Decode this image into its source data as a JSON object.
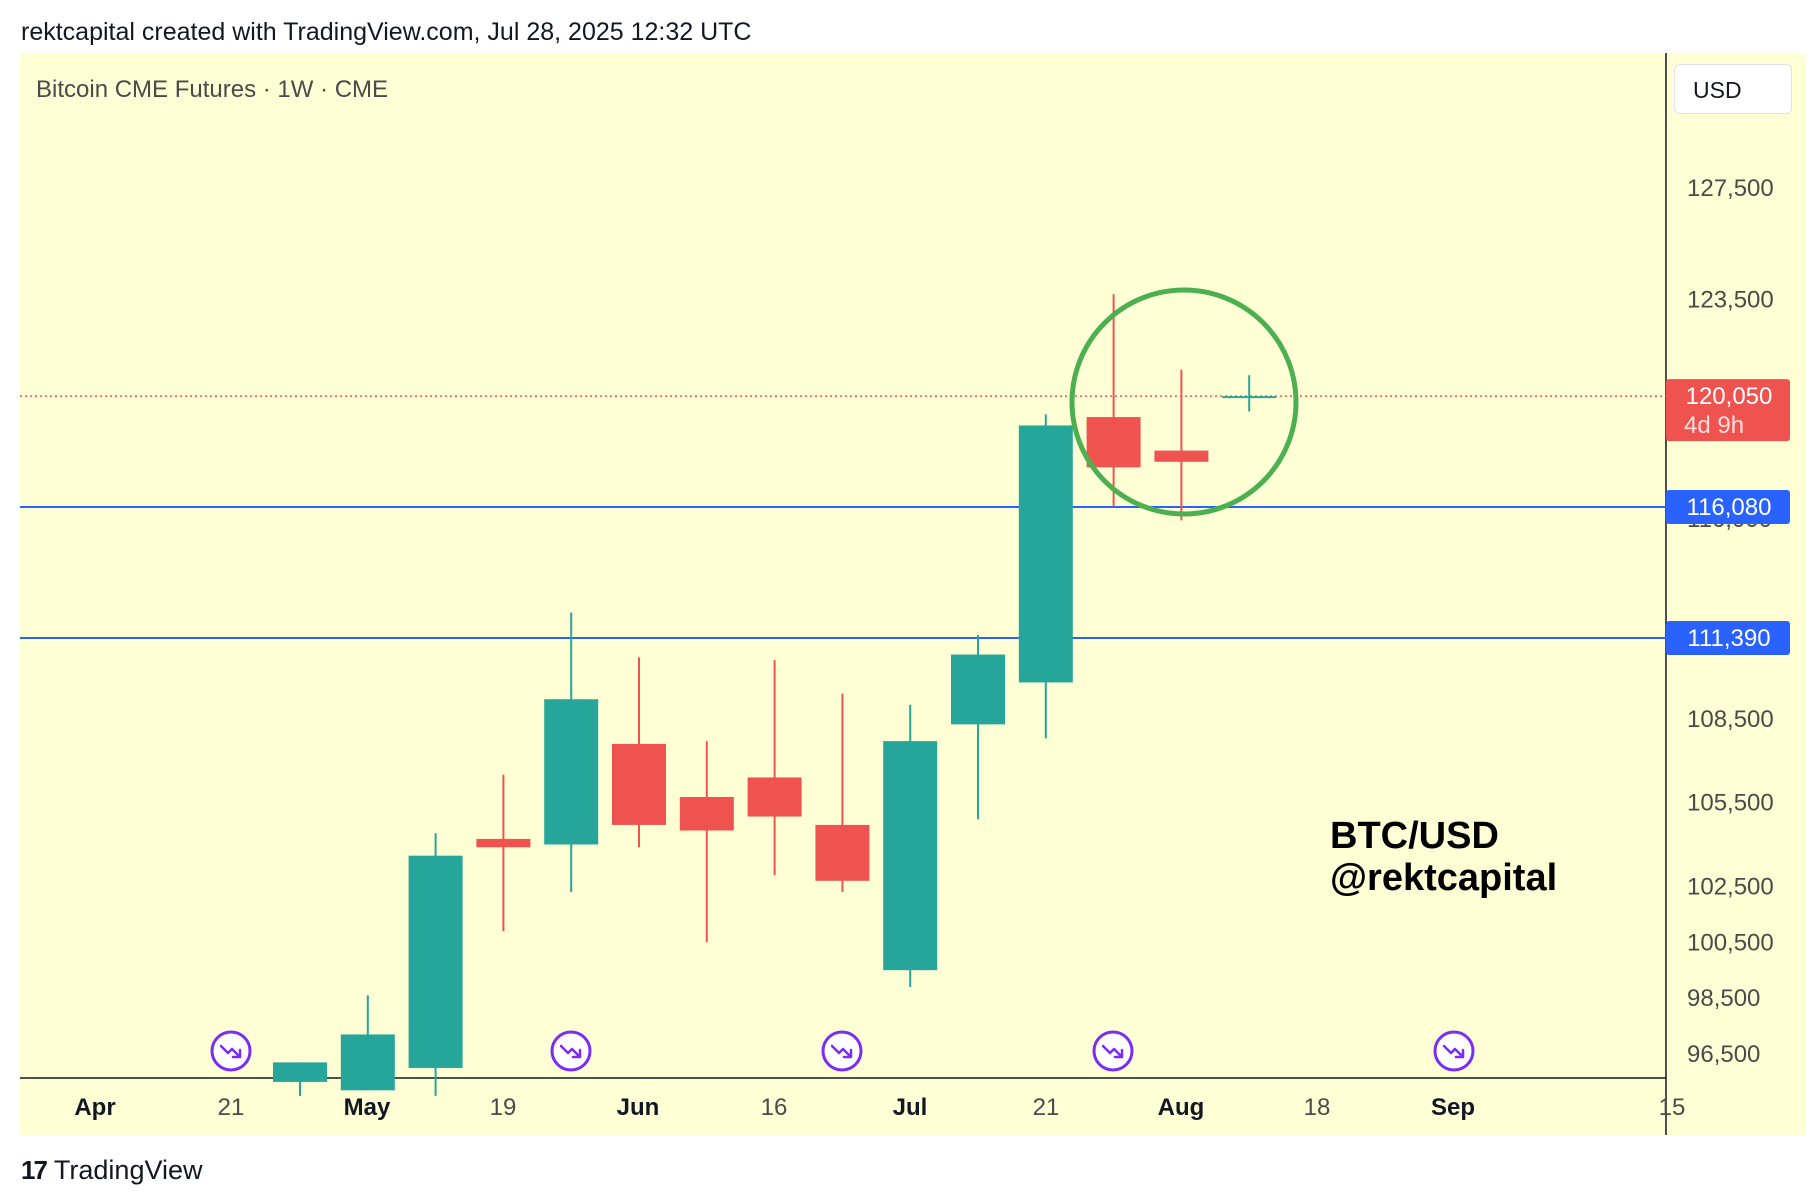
{
  "header": {
    "attribution": "rektcapital created with TradingView.com, Jul 28, 2025 12:32 UTC"
  },
  "chart": {
    "symbol_title": "Bitcoin CME Futures · 1W · CME",
    "currency_button": "USD",
    "watermark_line1": "BTC/USD",
    "watermark_line2": "@rektcapital"
  },
  "footer": {
    "logo_glyph": "17",
    "brand": "TradingView"
  },
  "colors": {
    "background": "#ffffd6",
    "up": "#26a69a",
    "down": "#ef5350",
    "level_line": "#2962ff",
    "price_line": "#ef5350",
    "highlight_circle": "#4caf50",
    "event_icon": "#7b2cf5"
  },
  "chart_data": {
    "type": "candlestick",
    "interval": "1W",
    "y_axis_labels": [
      "127,500",
      "123,500",
      "108,500",
      "105,500",
      "102,500",
      "100,500",
      "98,500",
      "96,500"
    ],
    "x_axis_labels": [
      "Apr",
      "21",
      "May",
      "19",
      "Jun",
      "16",
      "Jul",
      "21",
      "Aug",
      "18",
      "Sep",
      "15"
    ],
    "candles": [
      {
        "o": 95500,
        "h": 96200,
        "l": 95000,
        "c": 96200
      },
      {
        "o": 95200,
        "h": 98600,
        "l": 95200,
        "c": 97200
      },
      {
        "o": 96000,
        "h": 104400,
        "l": 95000,
        "c": 103600
      },
      {
        "o": 104200,
        "h": 106500,
        "l": 100900,
        "c": 103900
      },
      {
        "o": 104000,
        "h": 112300,
        "l": 102300,
        "c": 109200
      },
      {
        "o": 107600,
        "h": 110700,
        "l": 103900,
        "c": 104700
      },
      {
        "o": 105700,
        "h": 107700,
        "l": 100500,
        "c": 104500
      },
      {
        "o": 106400,
        "h": 110600,
        "l": 102900,
        "c": 105000
      },
      {
        "o": 104700,
        "h": 109400,
        "l": 102300,
        "c": 102700
      },
      {
        "o": 99500,
        "h": 109000,
        "l": 98900,
        "c": 107700
      },
      {
        "o": 108300,
        "h": 111500,
        "l": 104900,
        "c": 110800
      },
      {
        "o": 109800,
        "h": 119400,
        "l": 107800,
        "c": 119000
      },
      {
        "o": 119300,
        "h": 123700,
        "l": 116100,
        "c": 117500
      },
      {
        "o": 118100,
        "h": 121000,
        "l": 115600,
        "c": 117700
      },
      {
        "o": 120050,
        "h": 120800,
        "l": 119500,
        "c": 120050
      }
    ],
    "horizontal_levels": [
      {
        "value": 116080,
        "label": "116,080",
        "partially_hidden_label": "116,000"
      },
      {
        "value": 111390,
        "label": "111,390"
      }
    ],
    "last_price": {
      "value": 120050,
      "label": "120,050",
      "countdown": "4d 9h"
    },
    "event_markers_at": [
      "21",
      "19",
      "16",
      "21",
      "18"
    ],
    "highlight": {
      "type": "circle",
      "around_candles": [
        13,
        14
      ],
      "color": "green"
    },
    "grid": false
  }
}
